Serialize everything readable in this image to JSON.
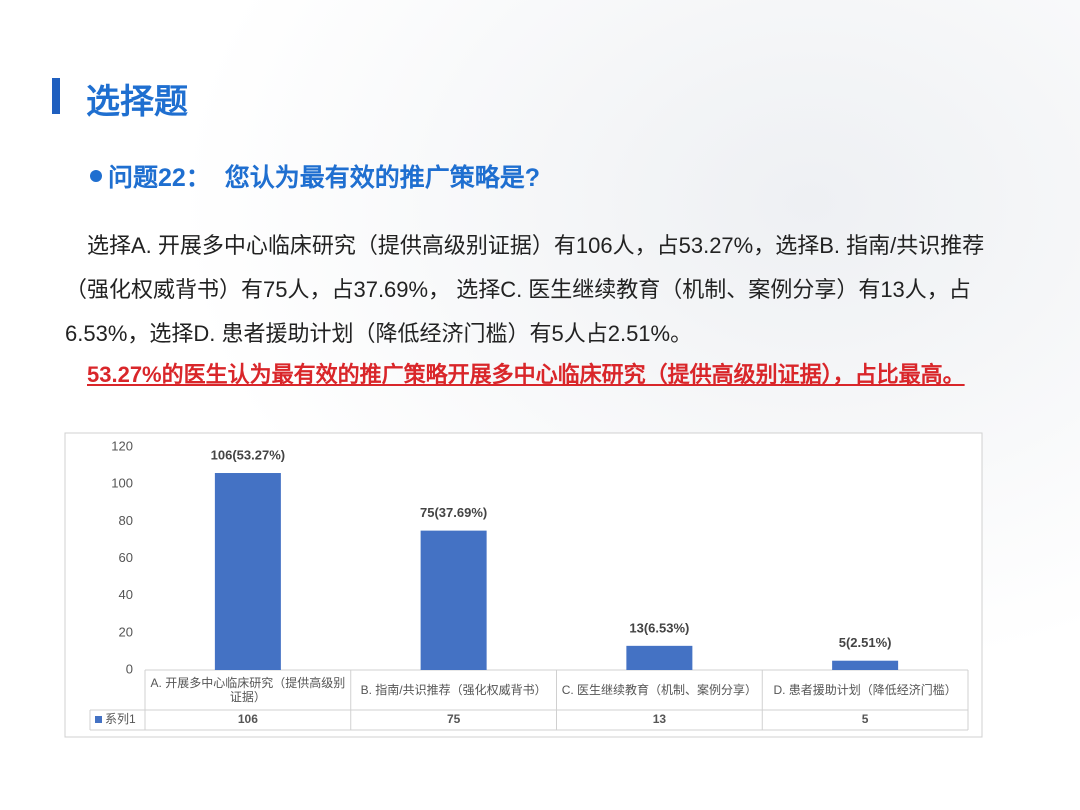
{
  "header": {
    "title": "选择题"
  },
  "question": "问题22：  您认为最有效的推广策略是?",
  "paragraph": "选择A. 开展多中心临床研究（提供高级别证据）有106人，占53.27%，选择B. 指南/共识推荐（强化权威背书）有75人，占37.69%，  选择C. 医生继续教育（机制、案例分享）有13人，占6.53%，选择D. 患者援助计划（降低经济门槛）有5人占2.51%。",
  "conclusion": "53.27%的医生认为最有效的推广策略开展多中心临床研究（提供高级别证据），占比最高。",
  "chart_data": {
    "type": "bar",
    "categories": [
      "A. 开展多中心临床研究（提供高级别证据）",
      "B. 指南/共识推荐（强化权威背书）",
      "C. 医生继续教育（机制、案例分享）",
      "D. 患者援助计划（降低经济门槛）"
    ],
    "series": [
      {
        "name": "系列1",
        "color": "#4472c4",
        "values": [
          106,
          75,
          13,
          5
        ],
        "value_labels": [
          "106(53.27%)",
          "75(37.69%)",
          "13(6.53%)",
          "5(2.51%)"
        ]
      }
    ],
    "ylim": [
      0,
      120
    ],
    "yticks": [
      0,
      20,
      40,
      60,
      80,
      100,
      120
    ],
    "grid": false
  }
}
